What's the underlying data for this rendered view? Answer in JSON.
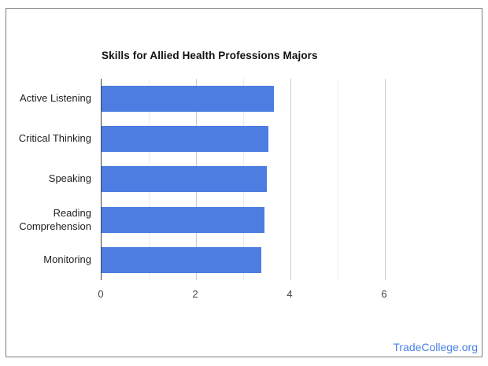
{
  "chart_data": {
    "type": "bar",
    "orientation": "horizontal",
    "title": "Skills for Allied Health Professions Majors",
    "categories": [
      "Active Listening",
      "Critical Thinking",
      "Speaking",
      "Reading Comprehension",
      "Monitoring"
    ],
    "values": [
      3.65,
      3.53,
      3.5,
      3.45,
      3.38
    ],
    "xlabel": "",
    "ylabel": "",
    "xlim": [
      0,
      7
    ],
    "xticks": [
      0,
      2,
      4,
      6
    ],
    "grid": true,
    "legend": "none",
    "bar_color": "#4d7de1",
    "major_grid_color": "#cccccc",
    "minor_grid_color": "#ebebeb"
  },
  "footer": {
    "watermark": "TradeCollege.org",
    "watermark_color": "#4a80e8"
  }
}
